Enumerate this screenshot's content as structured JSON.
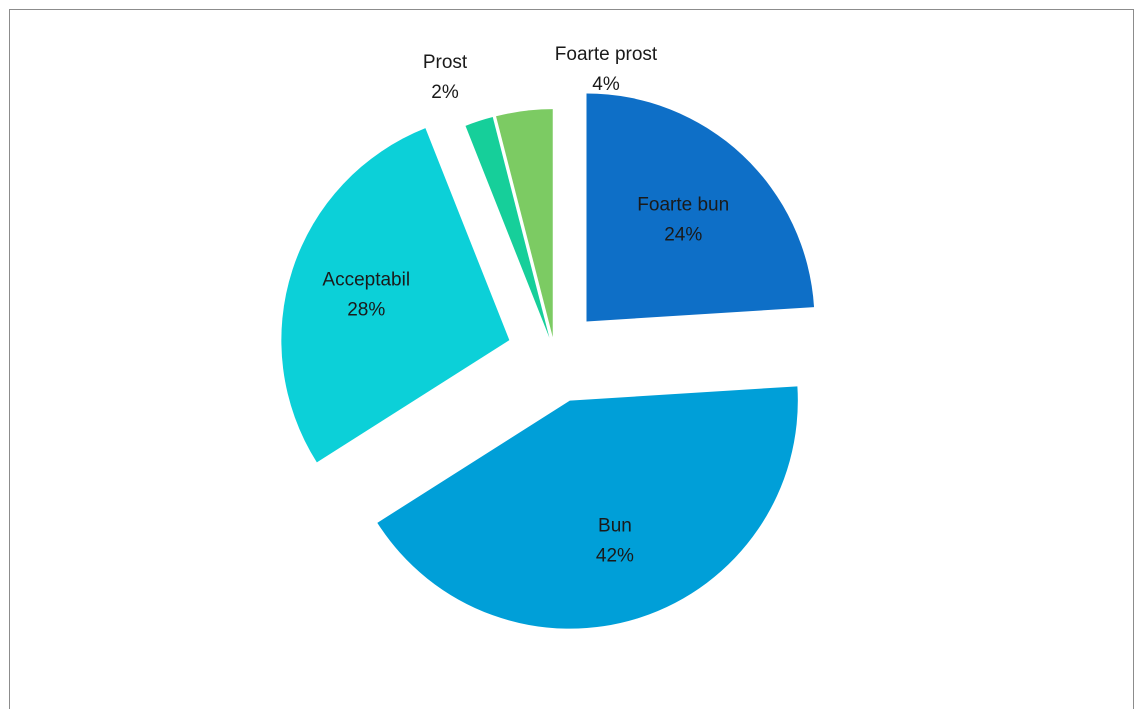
{
  "chart_data": {
    "type": "pie",
    "title": "",
    "exploded": true,
    "start_angle_deg": 0,
    "direction": "clockwise",
    "slices": [
      {
        "label": "Foarte bun",
        "value": 24,
        "percent_label": "24%",
        "color": "#0e6fc7"
      },
      {
        "label": "Bun",
        "value": 42,
        "percent_label": "42%",
        "color": "#009fd8"
      },
      {
        "label": "Acceptabil",
        "value": 28,
        "percent_label": "28%",
        "color": "#0cd0d8"
      },
      {
        "label": "Prost",
        "value": 2,
        "percent_label": "2%",
        "color": "#16cf9a"
      },
      {
        "label": "Foarte prost",
        "value": 4,
        "percent_label": "4%",
        "color": "#7ccb63"
      }
    ],
    "legend": "none"
  }
}
